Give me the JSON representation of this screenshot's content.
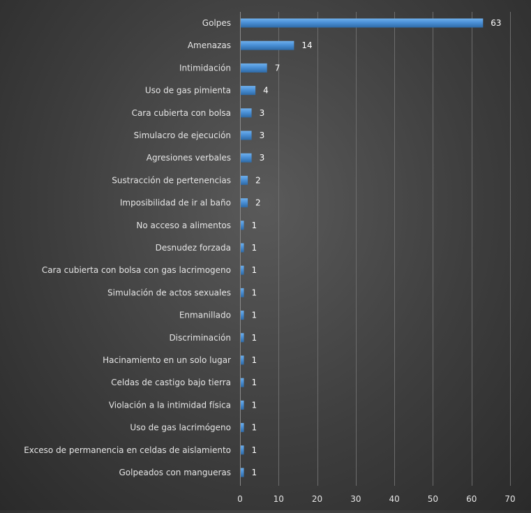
{
  "chart_data": {
    "type": "bar",
    "orientation": "horizontal",
    "categories": [
      "Golpes",
      "Amenazas",
      "Intimidación",
      "Uso de gas pimienta",
      "Cara cubierta con bolsa",
      "Simulacro de ejecución",
      "Agresiones verbales",
      "Sustracción de pertenencias",
      "Imposibilidad de ir al baño",
      "No acceso a alimentos",
      "Desnudez forzada",
      "Cara cubierta con bolsa con gas lacrimogeno",
      "Simulación de actos sexuales",
      "Enmanillado",
      "Discriminación",
      "Hacinamiento en un solo lugar",
      "Celdas de castigo bajo tierra",
      "Violación a la intimidad física",
      "Uso de gas lacrimógeno",
      "Exceso de permanencia en celdas de aislamiento",
      "Golpeados con mangueras"
    ],
    "values": [
      63,
      14,
      7,
      4,
      3,
      3,
      3,
      2,
      2,
      1,
      1,
      1,
      1,
      1,
      1,
      1,
      1,
      1,
      1,
      1,
      1
    ],
    "xlim": [
      0,
      70
    ],
    "xticks": [
      0,
      10,
      20,
      30,
      40,
      50,
      60,
      70
    ],
    "grid": "vertical",
    "legend": "none",
    "data_labels": true,
    "colors": {
      "bar": "#4a90d6",
      "bar_highlight": "#6fb0ec",
      "bar_shadow": "#2e6aa6"
    }
  }
}
